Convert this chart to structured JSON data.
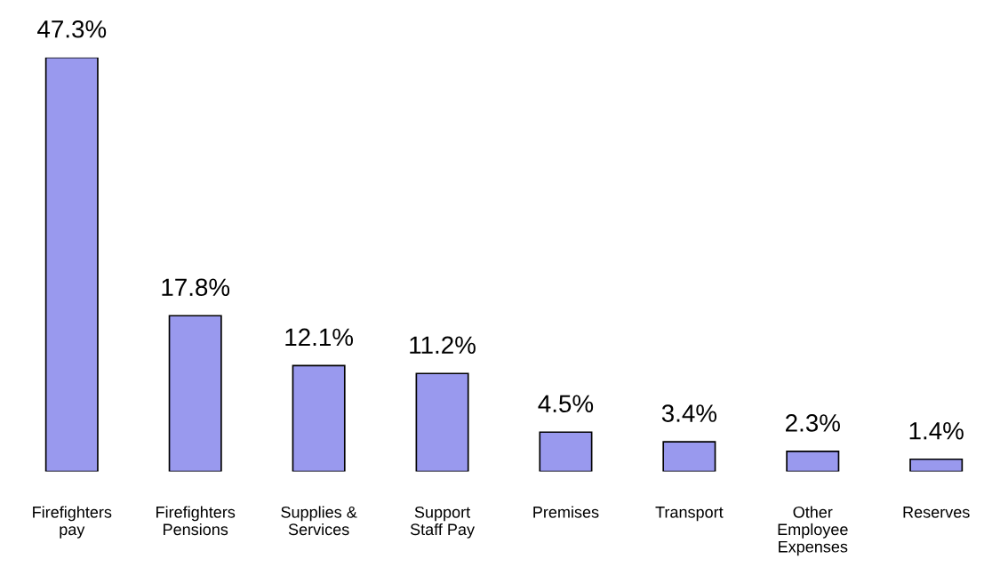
{
  "chart_data": {
    "type": "bar",
    "categories": [
      "Firefighters\npay",
      "Firefighters\nPensions",
      "Supplies &\nServices",
      "Support\nStaff Pay",
      "Premises",
      "Transport",
      "Other\nEmployee\nExpenses",
      "Reserves"
    ],
    "values": [
      47.3,
      17.8,
      12.1,
      11.2,
      4.5,
      3.4,
      2.3,
      1.4
    ],
    "value_labels": [
      "47.3%",
      "17.8%",
      "12.1%",
      "11.2%",
      "4.5%",
      "3.4%",
      "2.3%",
      "1.4%"
    ],
    "color": "#9999ee",
    "grid": false,
    "legend": false
  }
}
